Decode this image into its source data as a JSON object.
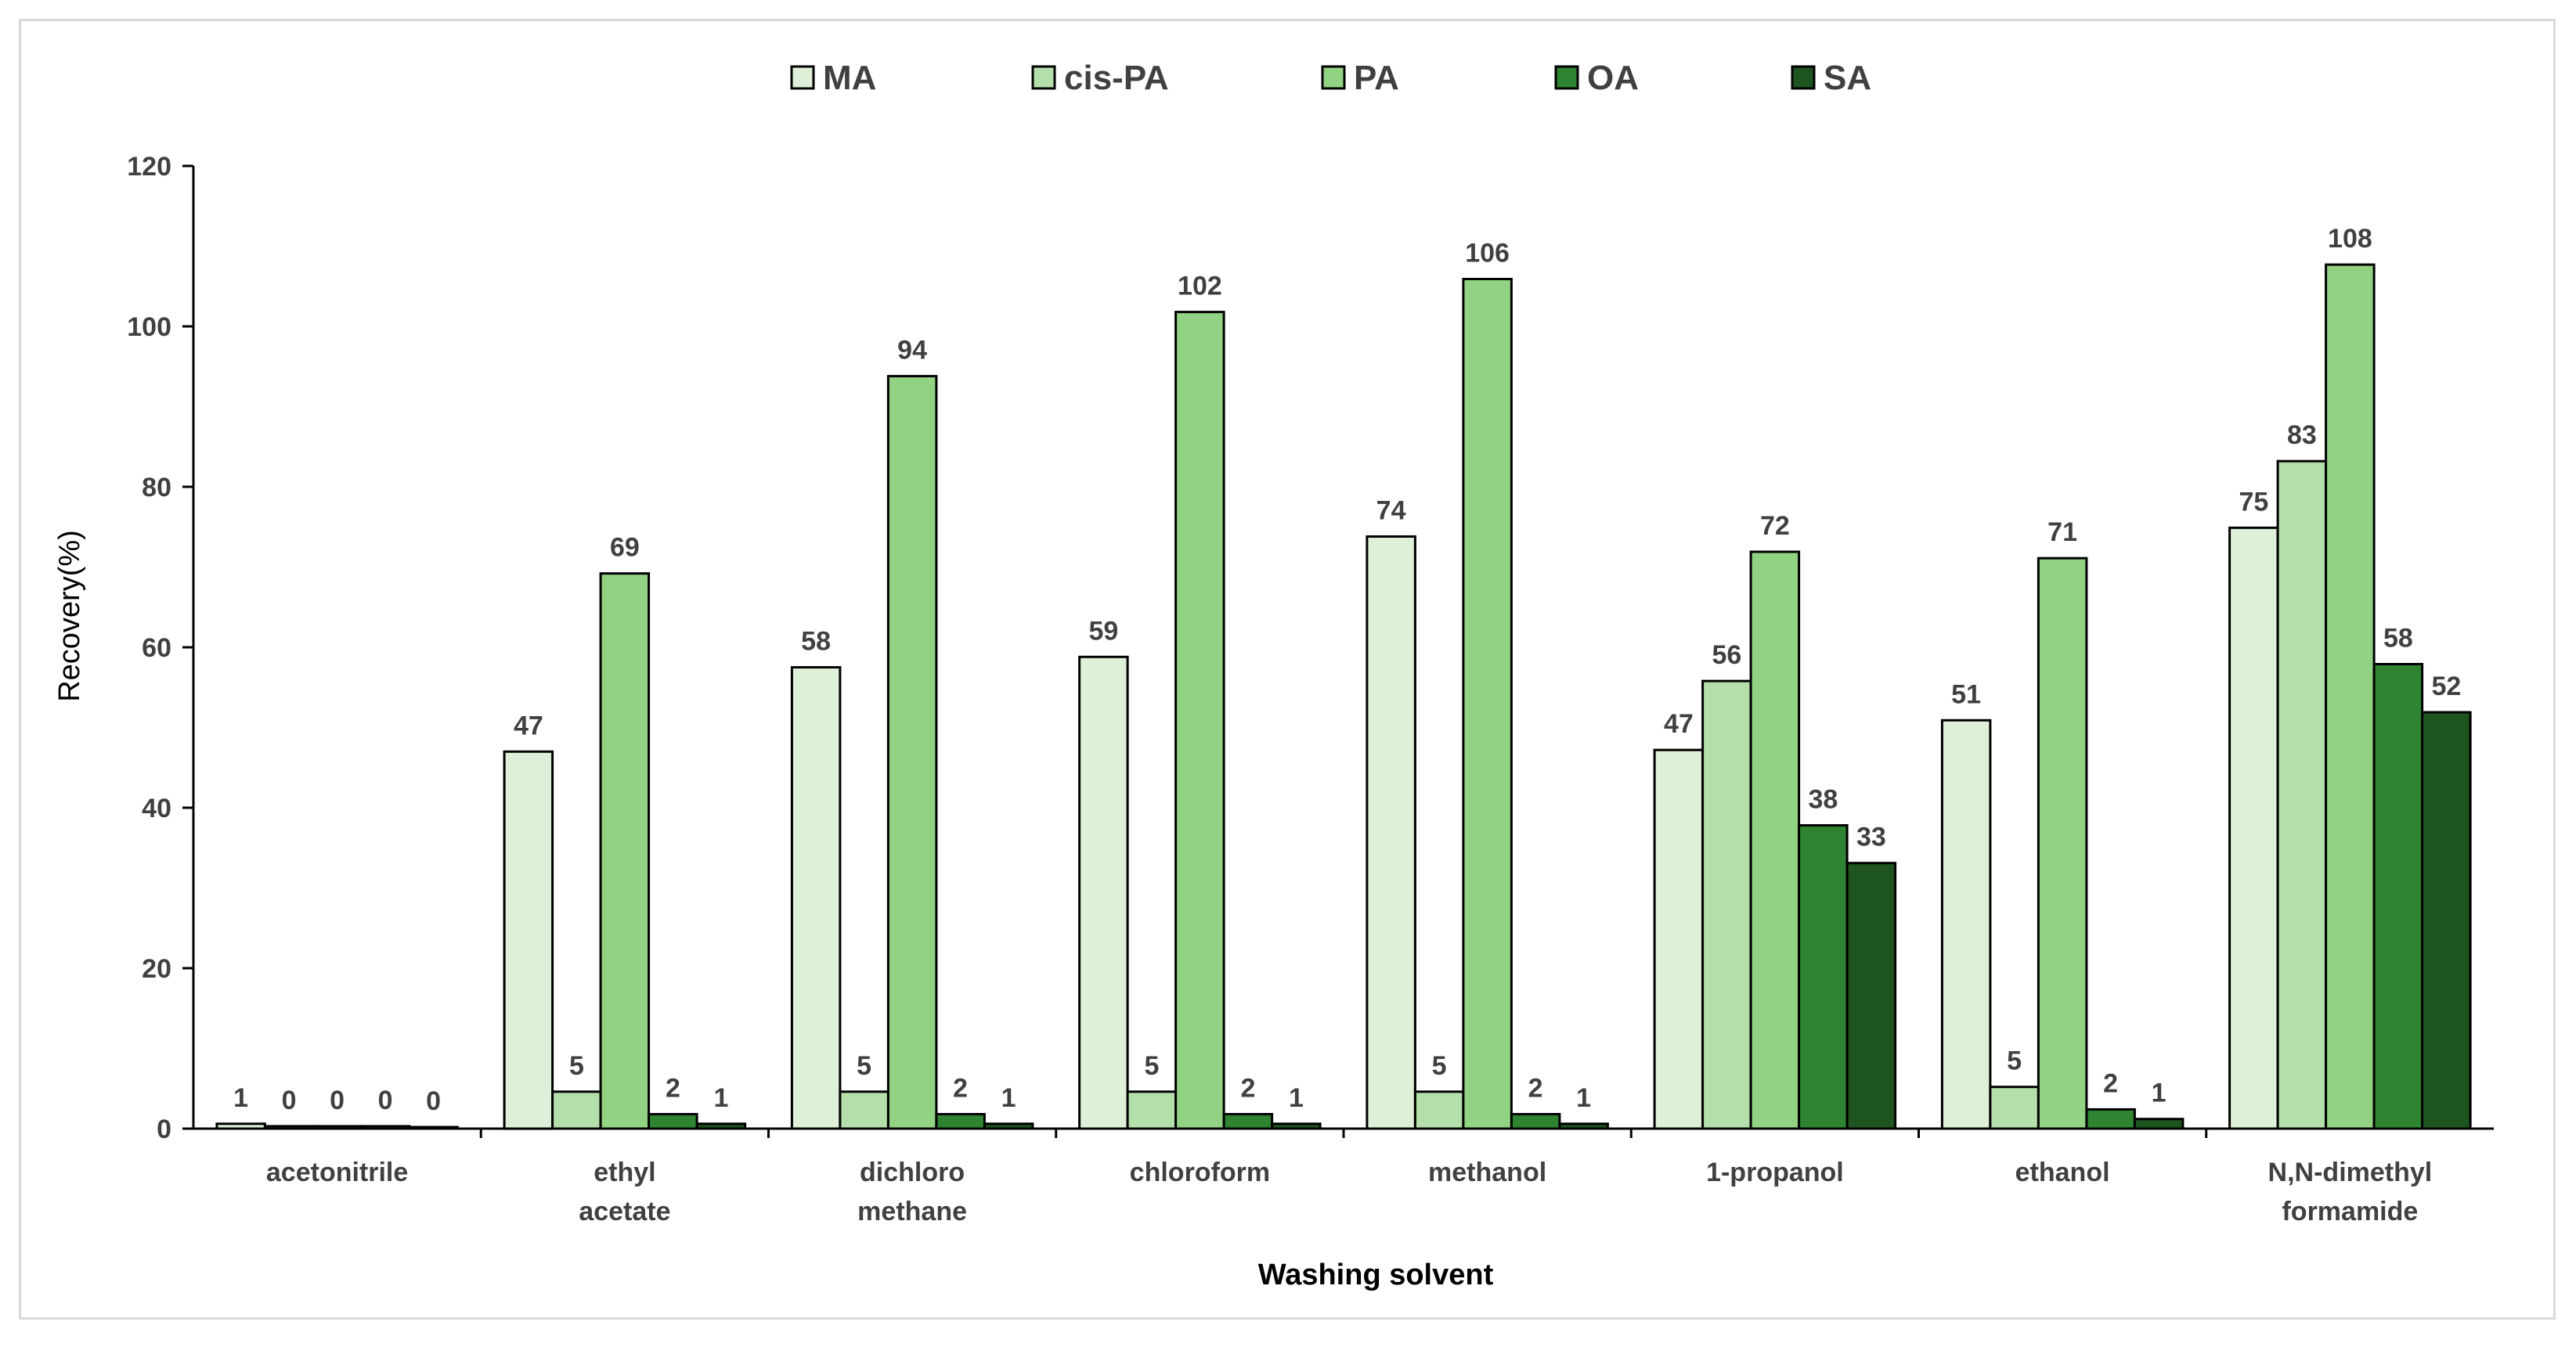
{
  "chart_data": {
    "type": "bar",
    "title": "",
    "xlabel": "Washing solvent",
    "ylabel": "Recovery(%)",
    "ylim": [
      0,
      120
    ],
    "yticks": [
      0,
      20,
      40,
      60,
      80,
      100,
      120
    ],
    "grid": false,
    "legend_position": "top",
    "categories": [
      [
        "acetonitrile"
      ],
      [
        "ethyl",
        "acetate"
      ],
      [
        "dichloro",
        "methane"
      ],
      [
        "chloroform"
      ],
      [
        "methanol"
      ],
      [
        "1-propanol"
      ],
      [
        "ethanol"
      ],
      [
        "N,N-dimethyl",
        "formamide"
      ]
    ],
    "series": [
      {
        "name": "MA",
        "color": "#dff0d8",
        "values": [
          0.6,
          47,
          57.5,
          58.8,
          73.8,
          47.2,
          50.9,
          74.9
        ],
        "labels": [
          "1",
          "47",
          "58",
          "59",
          "74",
          "47",
          "51",
          "75"
        ]
      },
      {
        "name": "cis-PA",
        "color": "#b5dfaa",
        "values": [
          0.3,
          4.6,
          4.6,
          4.6,
          4.6,
          55.8,
          5.2,
          83.2
        ],
        "labels": [
          "0",
          "5",
          "5",
          "5",
          "5",
          "56",
          "5",
          "83"
        ]
      },
      {
        "name": "PA",
        "color": "#92d283",
        "values": [
          0.3,
          69.2,
          93.8,
          101.8,
          105.9,
          71.9,
          71.1,
          107.7
        ],
        "labels": [
          "0",
          "69",
          "94",
          "102",
          "106",
          "72",
          "71",
          "108"
        ]
      },
      {
        "name": "OA",
        "color": "#2e8430",
        "values": [
          0.3,
          1.8,
          1.8,
          1.8,
          1.8,
          37.8,
          2.4,
          57.9
        ],
        "labels": [
          "0",
          "2",
          "2",
          "2",
          "2",
          "38",
          "2",
          "58"
        ]
      },
      {
        "name": "SA",
        "color": "#1e5420",
        "values": [
          0.2,
          0.6,
          0.6,
          0.6,
          0.6,
          33.1,
          1.2,
          51.9
        ],
        "labels": [
          "0",
          "1",
          "1",
          "1",
          "1",
          "33",
          "1",
          "52"
        ]
      }
    ]
  }
}
